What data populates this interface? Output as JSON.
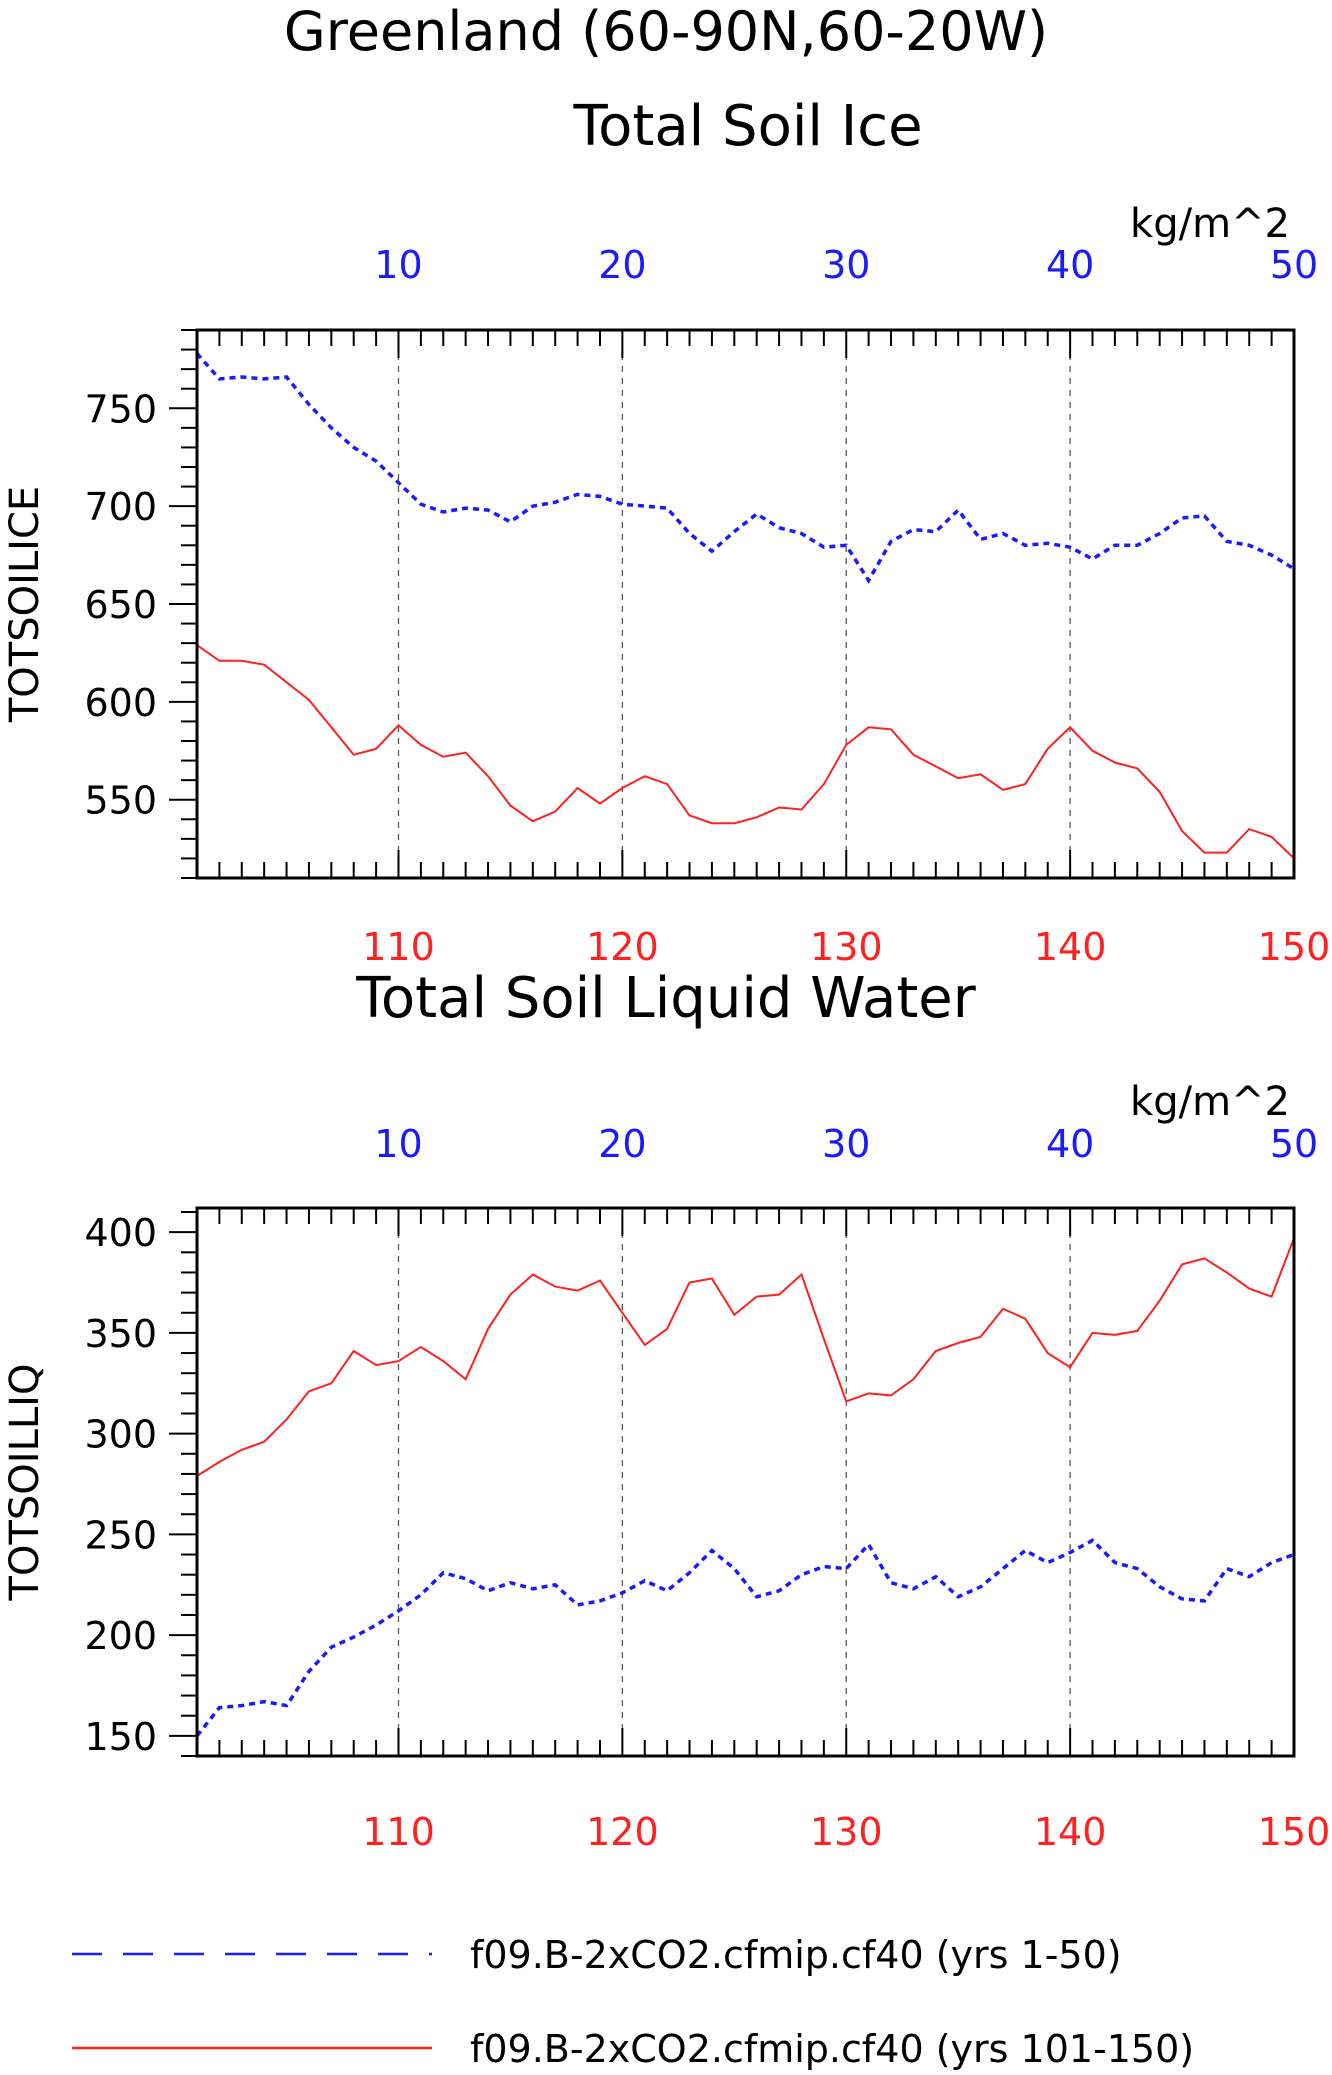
{
  "page": {
    "title_line1": "Greenland (60-90N,60-20W)",
    "colors": {
      "blue": "#1a1aff",
      "red": "#ff2020",
      "axis": "#000000",
      "grid": "#555555"
    }
  },
  "legend": [
    {
      "label": "f09.B-2xCO2.cfmip.cf40 (yrs 1-50)",
      "color": "#1a1aff",
      "style": "dashed"
    },
    {
      "label": "f09.B-2xCO2.cfmip.cf40 (yrs 101-150)",
      "color": "#ff2020",
      "style": "solid"
    }
  ],
  "chart_data": [
    {
      "type": "line",
      "title": "Total Soil Ice",
      "ylabel": "TOTSOILICE",
      "units": "kg/m^2",
      "ylim": [
        510,
        790
      ],
      "yticks": [
        550,
        600,
        650,
        700,
        750
      ],
      "top_axis": {
        "lim": [
          1,
          50
        ],
        "ticks": [
          10,
          20,
          30,
          40,
          50
        ],
        "color": "#1a1aff"
      },
      "bottom_axis": {
        "lim": [
          101,
          150
        ],
        "ticks": [
          110,
          120,
          130,
          140,
          150
        ],
        "color": "#ff2020"
      },
      "grid": "vertical dashed at major ticks",
      "series": [
        {
          "name": "f09.B-2xCO2.cfmip.cf40 (yrs 1-50)",
          "axis": "top",
          "color": "#1a1aff",
          "style": "dashed",
          "x": [
            1,
            2,
            3,
            4,
            5,
            6,
            7,
            8,
            9,
            10,
            11,
            12,
            13,
            14,
            15,
            16,
            17,
            18,
            19,
            20,
            21,
            22,
            23,
            24,
            25,
            26,
            27,
            28,
            29,
            30,
            31,
            32,
            33,
            34,
            35,
            36,
            37,
            38,
            39,
            40,
            41,
            42,
            43,
            44,
            45,
            46,
            47,
            48,
            49,
            50
          ],
          "values": [
            778,
            765,
            766,
            765,
            766,
            752,
            740,
            730,
            723,
            712,
            701,
            697,
            699,
            698,
            692,
            700,
            702,
            706,
            705,
            701,
            700,
            699,
            686,
            677,
            687,
            696,
            689,
            686,
            679,
            680,
            662,
            682,
            688,
            687,
            698,
            683,
            686,
            680,
            681,
            679,
            673,
            680,
            680,
            686,
            694,
            695,
            682,
            680,
            675,
            668
          ]
        },
        {
          "name": "f09.B-2xCO2.cfmip.cf40 (yrs 101-150)",
          "axis": "bottom",
          "color": "#ff2020",
          "style": "solid",
          "x": [
            101,
            102,
            103,
            104,
            105,
            106,
            107,
            108,
            109,
            110,
            111,
            112,
            113,
            114,
            115,
            116,
            117,
            118,
            119,
            120,
            121,
            122,
            123,
            124,
            125,
            126,
            127,
            128,
            129,
            130,
            131,
            132,
            133,
            134,
            135,
            136,
            137,
            138,
            139,
            140,
            141,
            142,
            143,
            144,
            145,
            146,
            147,
            148,
            149,
            150
          ],
          "values": [
            629,
            621,
            621,
            619,
            610,
            601,
            587,
            573,
            576,
            588,
            578,
            572,
            574,
            562,
            547,
            539,
            544,
            556,
            548,
            556,
            562,
            558,
            542,
            538,
            538,
            541,
            546,
            545,
            558,
            578,
            587,
            586,
            573,
            567,
            561,
            563,
            555,
            558,
            576,
            587,
            575,
            569,
            566,
            554,
            534,
            523,
            523,
            535,
            531,
            520
          ]
        }
      ]
    },
    {
      "type": "line",
      "title": "Total Soil Liquid Water",
      "ylabel": "TOTSOILLIQ",
      "units": "kg/m^2",
      "ylim": [
        140,
        412
      ],
      "yticks": [
        150,
        200,
        250,
        300,
        350,
        400
      ],
      "top_axis": {
        "lim": [
          1,
          50
        ],
        "ticks": [
          10,
          20,
          30,
          40,
          50
        ],
        "color": "#1a1aff"
      },
      "bottom_axis": {
        "lim": [
          101,
          150
        ],
        "ticks": [
          110,
          120,
          130,
          140,
          150
        ],
        "color": "#ff2020"
      },
      "grid": "vertical dashed at major ticks",
      "series": [
        {
          "name": "f09.B-2xCO2.cfmip.cf40 (yrs 1-50)",
          "axis": "top",
          "color": "#1a1aff",
          "style": "dashed",
          "x": [
            1,
            2,
            3,
            4,
            5,
            6,
            7,
            8,
            9,
            10,
            11,
            12,
            13,
            14,
            15,
            16,
            17,
            18,
            19,
            20,
            21,
            22,
            23,
            24,
            25,
            26,
            27,
            28,
            29,
            30,
            31,
            32,
            33,
            34,
            35,
            36,
            37,
            38,
            39,
            40,
            41,
            42,
            43,
            44,
            45,
            46,
            47,
            48,
            49,
            50
          ],
          "values": [
            150,
            164,
            165,
            167,
            165,
            182,
            194,
            199,
            205,
            212,
            220,
            231,
            228,
            222,
            226,
            223,
            225,
            215,
            217,
            221,
            227,
            222,
            231,
            242,
            233,
            219,
            222,
            230,
            234,
            233,
            245,
            226,
            223,
            229,
            219,
            224,
            233,
            242,
            236,
            241,
            247,
            236,
            233,
            224,
            218,
            217,
            233,
            229,
            236,
            240
          ]
        },
        {
          "name": "f09.B-2xCO2.cfmip.cf40 (yrs 101-150)",
          "axis": "bottom",
          "color": "#ff2020",
          "style": "solid",
          "x": [
            101,
            102,
            103,
            104,
            105,
            106,
            107,
            108,
            109,
            110,
            111,
            112,
            113,
            114,
            115,
            116,
            117,
            118,
            119,
            120,
            121,
            122,
            123,
            124,
            125,
            126,
            127,
            128,
            129,
            130,
            131,
            132,
            133,
            134,
            135,
            136,
            137,
            138,
            139,
            140,
            141,
            142,
            143,
            144,
            145,
            146,
            147,
            148,
            149,
            150
          ],
          "values": [
            279,
            286,
            292,
            296,
            307,
            321,
            325,
            341,
            334,
            336,
            343,
            336,
            327,
            352,
            369,
            379,
            373,
            371,
            376,
            360,
            344,
            352,
            375,
            377,
            359,
            368,
            369,
            379,
            347,
            316,
            320,
            319,
            327,
            341,
            345,
            348,
            362,
            357,
            340,
            333,
            350,
            349,
            351,
            366,
            384,
            387,
            380,
            372,
            368,
            397
          ]
        }
      ]
    }
  ]
}
